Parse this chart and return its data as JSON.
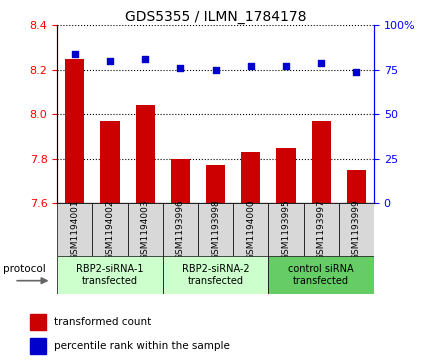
{
  "title": "GDS5355 / ILMN_1784178",
  "categories": [
    "GSM1194001",
    "GSM1194002",
    "GSM1194003",
    "GSM1193996",
    "GSM1193998",
    "GSM1194000",
    "GSM1193995",
    "GSM1193997",
    "GSM1193999"
  ],
  "bar_values": [
    8.25,
    7.97,
    8.04,
    7.8,
    7.77,
    7.83,
    7.85,
    7.97,
    7.75
  ],
  "percentile_values": [
    84,
    80,
    81,
    76,
    75,
    77,
    77,
    79,
    74
  ],
  "bar_color": "#cc0000",
  "dot_color": "#0000cc",
  "ylim_left": [
    7.6,
    8.4
  ],
  "ylim_right": [
    0,
    100
  ],
  "yticks_left": [
    7.6,
    7.8,
    8.0,
    8.2,
    8.4
  ],
  "yticks_right": [
    0,
    25,
    50,
    75,
    100
  ],
  "group_labels": [
    "RBP2-siRNA-1\ntransfected",
    "RBP2-siRNA-2\ntransfected",
    "control siRNA\ntransfected"
  ],
  "group_colors": [
    "#ccffcc",
    "#ccffcc",
    "#66cc66"
  ],
  "group_starts": [
    0,
    3,
    6
  ],
  "group_ends": [
    2,
    5,
    8
  ],
  "legend_bar_label": "transformed count",
  "legend_dot_label": "percentile rank within the sample",
  "protocol_label": "protocol",
  "tick_label_fontsize": 6.5,
  "title_fontsize": 10
}
